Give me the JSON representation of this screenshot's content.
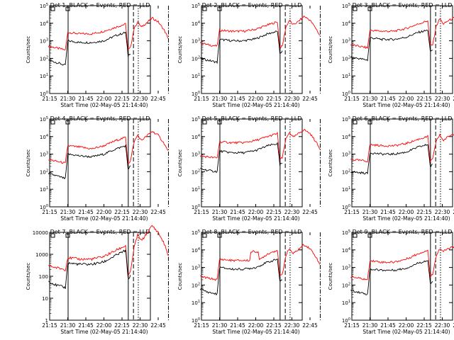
{
  "chart_data": [
    {
      "type": "line",
      "title": "Det 1, BLACK = Events, RED = LLD",
      "xlabel": "Start Time (02-May-05 21:14:40)",
      "ylabel": "Counts/sec",
      "y_scale": "log",
      "ylim": [
        1,
        100000
      ],
      "x_ticks": [
        "21:15",
        "21:30",
        "21:45",
        "22:00",
        "22:15",
        "22:30",
        "22:45"
      ],
      "y_ticks": [
        "10^0",
        "10^1",
        "10^2",
        "10^3",
        "10^4",
        "10^5"
      ],
      "series": [
        {
          "color": "#ff0000",
          "x": [
            "21:14",
            "21:20",
            "21:28",
            "21:30",
            "21:40",
            "21:50",
            "22:00",
            "22:10",
            "22:18",
            "22:20",
            "22:22",
            "22:25",
            "22:28",
            "22:31",
            "22:35",
            "22:40",
            "22:45",
            "22:50",
            "22:53"
          ],
          "values": [
            500,
            400,
            300,
            3000,
            2500,
            2500,
            3500,
            6000,
            9000,
            300,
            400,
            5000,
            12000,
            6000,
            10000,
            20000,
            12000,
            4000,
            1500
          ]
        },
        {
          "color": "#000000",
          "x": [
            "21:14",
            "21:20",
            "21:28",
            "21:30",
            "21:40",
            "21:50",
            "22:00",
            "22:10",
            "22:18",
            "22:20",
            "22:22"
          ],
          "values": [
            80,
            60,
            40,
            1000,
            800,
            800,
            1000,
            2000,
            3000,
            150,
            200
          ]
        }
      ]
    },
    {
      "type": "line",
      "title": "Det 2, BLACK = Events, RED = LLD",
      "xlabel": "Start Time (02-May-05 21:14:40)",
      "ylabel": "Counts/sec",
      "y_scale": "log",
      "ylim": [
        1,
        100000
      ],
      "x_ticks": [
        "21:15",
        "21:30",
        "21:45",
        "22:00",
        "22:15",
        "22:30",
        "22:45"
      ],
      "y_ticks": [
        "10^0",
        "10^1",
        "10^2",
        "10^3",
        "10^4",
        "10^5"
      ],
      "series": [
        {
          "color": "#ff0000",
          "x": [
            "21:14",
            "21:20",
            "21:28",
            "21:30",
            "21:40",
            "21:50",
            "22:00",
            "22:10",
            "22:18",
            "22:20",
            "22:22",
            "22:25",
            "22:28",
            "22:31",
            "22:35",
            "22:40",
            "22:45",
            "22:50",
            "22:53"
          ],
          "values": [
            800,
            600,
            500,
            4000,
            3500,
            3500,
            4500,
            8000,
            12000,
            400,
            500,
            6000,
            15000,
            8000,
            12000,
            25000,
            15000,
            5000,
            2000
          ]
        },
        {
          "color": "#000000",
          "x": [
            "21:14",
            "21:20",
            "21:28",
            "21:30",
            "21:40",
            "21:50",
            "22:00",
            "22:10",
            "22:18",
            "22:20",
            "22:22"
          ],
          "values": [
            100,
            80,
            60,
            1200,
            1000,
            1000,
            1300,
            2500,
            3500,
            200,
            250
          ]
        }
      ]
    },
    {
      "type": "line",
      "title": "Det 3, BLACK = Events, RED = LLD",
      "xlabel": "Start Time (02-May-05 21:14:40)",
      "ylabel": "Counts/sec",
      "y_scale": "log",
      "ylim": [
        1,
        100000
      ],
      "x_ticks": [
        "21:15",
        "21:30",
        "21:45",
        "22:00",
        "22:15",
        "22:30",
        "22:45"
      ],
      "y_ticks": [
        "10^0",
        "10^1",
        "10^2",
        "10^3",
        "10^4",
        "10^5"
      ],
      "series": [
        {
          "color": "#ff0000",
          "x": [
            "21:14",
            "21:20",
            "21:28",
            "21:30",
            "21:40",
            "21:50",
            "22:00",
            "22:10",
            "22:18",
            "22:20",
            "22:22",
            "22:25",
            "22:28",
            "22:31",
            "22:35",
            "22:40",
            "22:45",
            "22:50",
            "22:53"
          ],
          "values": [
            600,
            500,
            400,
            4000,
            3500,
            3500,
            5000,
            9000,
            14000,
            500,
            600,
            7000,
            18000,
            9000,
            14000,
            20000,
            12000,
            5000,
            2000
          ]
        },
        {
          "color": "#000000",
          "x": [
            "21:14",
            "21:20",
            "21:28",
            "21:30",
            "21:40",
            "21:50",
            "22:00",
            "22:10",
            "22:18",
            "22:20",
            "22:22"
          ],
          "values": [
            120,
            100,
            80,
            1500,
            1200,
            1200,
            1600,
            3000,
            4000,
            250,
            300
          ]
        }
      ]
    },
    {
      "type": "line",
      "title": "Det 4, BLACK = Events, RED = LLD",
      "xlabel": "Start Time (02-May-05 21:14:40)",
      "ylabel": "Counts/sec",
      "y_scale": "log",
      "ylim": [
        1,
        100000
      ],
      "x_ticks": [
        "21:15",
        "21:30",
        "21:45",
        "22:00",
        "22:15",
        "22:30",
        "22:45"
      ],
      "y_ticks": [
        "10^0",
        "10^1",
        "10^2",
        "10^3",
        "10^4",
        "10^5"
      ],
      "series": [
        {
          "color": "#ff0000",
          "x": [
            "21:14",
            "21:20",
            "21:28",
            "21:30",
            "21:40",
            "21:50",
            "22:00",
            "22:10",
            "22:18",
            "22:20",
            "22:22",
            "22:25",
            "22:28",
            "22:31",
            "22:35",
            "22:40",
            "22:45",
            "22:50",
            "22:53"
          ],
          "values": [
            500,
            400,
            300,
            3000,
            2500,
            2000,
            3000,
            6000,
            9000,
            300,
            400,
            5000,
            12000,
            6000,
            10000,
            20000,
            12000,
            4000,
            1500
          ]
        },
        {
          "color": "#000000",
          "x": [
            "21:14",
            "21:20",
            "21:28",
            "21:30",
            "21:40",
            "21:50",
            "22:00",
            "22:10",
            "22:18",
            "22:20",
            "22:22"
          ],
          "values": [
            80,
            60,
            40,
            1000,
            800,
            700,
            1000,
            2000,
            3000,
            150,
            200
          ]
        }
      ]
    },
    {
      "type": "line",
      "title": "Det 5, BLACK = Events, RED = LLD",
      "xlabel": "Start Time (02-May-05 21:14:40)",
      "ylabel": "Counts/sec",
      "y_scale": "log",
      "ylim": [
        1,
        100000
      ],
      "x_ticks": [
        "21:15",
        "21:30",
        "21:45",
        "22:00",
        "22:15",
        "22:30",
        "22:45"
      ],
      "y_ticks": [
        "10^0",
        "10^1",
        "10^2",
        "10^3",
        "10^4",
        "10^5"
      ],
      "series": [
        {
          "color": "#ff0000",
          "x": [
            "21:14",
            "21:20",
            "21:28",
            "21:30",
            "21:40",
            "21:50",
            "22:00",
            "22:10",
            "22:18",
            "22:20",
            "22:22",
            "22:25",
            "22:28",
            "22:31",
            "22:35",
            "22:40",
            "22:45",
            "22:50",
            "22:53"
          ],
          "values": [
            800,
            700,
            600,
            5000,
            4500,
            4500,
            6000,
            10000,
            15000,
            500,
            600,
            7000,
            18000,
            9000,
            14000,
            25000,
            15000,
            5000,
            2000
          ]
        },
        {
          "color": "#000000",
          "x": [
            "21:14",
            "21:20",
            "21:28",
            "21:30",
            "21:40",
            "21:50",
            "22:00",
            "22:10",
            "22:18",
            "22:20",
            "22:22"
          ],
          "values": [
            150,
            120,
            100,
            1500,
            1200,
            1200,
            1600,
            3000,
            4000,
            250,
            300
          ]
        }
      ]
    },
    {
      "type": "line",
      "title": "Det 6, BLACK = Events, RED = LLD",
      "xlabel": "Start Time (02-May-05 21:14:40)",
      "ylabel": "Counts/sec",
      "y_scale": "log",
      "ylim": [
        1,
        100000
      ],
      "x_ticks": [
        "21:15",
        "21:30",
        "21:45",
        "22:00",
        "22:15",
        "22:30",
        "22:45"
      ],
      "y_ticks": [
        "10^0",
        "10^1",
        "10^2",
        "10^3",
        "10^4",
        "10^5"
      ],
      "series": [
        {
          "color": "#ff0000",
          "x": [
            "21:14",
            "21:20",
            "21:28",
            "21:30",
            "21:40",
            "21:50",
            "22:00",
            "22:10",
            "22:18",
            "22:20",
            "22:22",
            "22:25",
            "22:28",
            "22:31",
            "22:35",
            "22:40",
            "22:45",
            "22:50",
            "22:53"
          ],
          "values": [
            500,
            450,
            400,
            3500,
            3000,
            3000,
            4000,
            7000,
            10000,
            400,
            500,
            6000,
            12000,
            6000,
            10000,
            15000,
            10000,
            4000,
            1500
          ]
        },
        {
          "color": "#000000",
          "x": [
            "21:14",
            "21:20",
            "21:28",
            "21:30",
            "21:40",
            "21:50",
            "22:00",
            "22:10",
            "22:18",
            "22:20",
            "22:22"
          ],
          "values": [
            100,
            90,
            80,
            1200,
            1000,
            1000,
            1300,
            2500,
            3500,
            200,
            250
          ]
        }
      ]
    },
    {
      "type": "line",
      "title": "Det 7, BLACK = Events, RED = LLD",
      "xlabel": "Start Time (02-May-05 21:14:40)",
      "ylabel": "Counts/sec",
      "y_scale": "log",
      "ylim": [
        1,
        10000
      ],
      "x_ticks": [
        "21:15",
        "21:30",
        "21:45",
        "22:00",
        "22:15",
        "22:30",
        "22:45"
      ],
      "y_ticks": [
        "1",
        "10",
        "100",
        "1000",
        "10000"
      ],
      "series": [
        {
          "color": "#ff0000",
          "x": [
            "21:14",
            "21:20",
            "21:28",
            "21:30",
            "21:40",
            "21:50",
            "22:00",
            "22:10",
            "22:18",
            "22:20",
            "22:22",
            "22:25",
            "22:28",
            "22:31",
            "22:35",
            "22:40",
            "22:45",
            "22:50",
            "22:53"
          ],
          "values": [
            300,
            250,
            200,
            700,
            600,
            600,
            800,
            1500,
            2500,
            100,
            150,
            2000,
            8000,
            4000,
            8000,
            20000,
            10000,
            3000,
            1000
          ]
        },
        {
          "color": "#000000",
          "x": [
            "21:14",
            "21:20",
            "21:28",
            "21:30",
            "21:40",
            "21:50",
            "22:00",
            "22:10",
            "22:18",
            "22:20",
            "22:22"
          ],
          "values": [
            60,
            40,
            30,
            400,
            350,
            350,
            450,
            900,
            1500,
            80,
            100
          ]
        }
      ]
    },
    {
      "type": "line",
      "title": "Det 8, BLACK = Events, RED = LLD",
      "xlabel": "Start Time (02-May-05 21:14:40)",
      "ylabel": "Counts/sec",
      "y_scale": "log",
      "ylim": [
        1,
        100000
      ],
      "x_ticks": [
        "21:15",
        "21:30",
        "21:45",
        "22:00",
        "22:15",
        "22:30",
        "22:45"
      ],
      "y_ticks": [
        "10^0",
        "10^1",
        "10^2",
        "10^3",
        "10^4",
        "10^5"
      ],
      "series": [
        {
          "color": "#ff0000",
          "x": [
            "21:14",
            "21:20",
            "21:28",
            "21:30",
            "21:40",
            "21:50",
            "21:55",
            "21:56",
            "22:02",
            "22:03",
            "22:05",
            "22:10",
            "22:18",
            "22:20",
            "22:22",
            "22:25",
            "22:28",
            "22:31",
            "22:35",
            "22:40",
            "22:45",
            "22:50",
            "22:53"
          ],
          "values": [
            300,
            250,
            200,
            3000,
            2500,
            2500,
            2500,
            8000,
            8000,
            2500,
            3500,
            6000,
            10000,
            300,
            400,
            5000,
            12000,
            6000,
            10000,
            20000,
            12000,
            4000,
            1500
          ]
        },
        {
          "color": "#000000",
          "x": [
            "21:14",
            "21:20",
            "21:28",
            "21:30",
            "21:40",
            "21:50",
            "22:00",
            "22:10",
            "22:18",
            "22:20",
            "22:22"
          ],
          "values": [
            60,
            40,
            30,
            1000,
            800,
            800,
            1000,
            2000,
            3000,
            150,
            200
          ]
        }
      ]
    },
    {
      "type": "line",
      "title": "Det 9, BLACK = Events, RED = LLD",
      "xlabel": "Start Time (02-May-05 21:14:40)",
      "ylabel": "Counts/sec",
      "y_scale": "log",
      "ylim": [
        1,
        100000
      ],
      "x_ticks": [
        "21:15",
        "21:30",
        "21:45",
        "22:00",
        "22:15",
        "22:30",
        "22:45"
      ],
      "y_ticks": [
        "10^0",
        "10^1",
        "10^2",
        "10^3",
        "10^4",
        "10^5"
      ],
      "series": [
        {
          "color": "#ff0000",
          "x": [
            "21:14",
            "21:20",
            "21:28",
            "21:30",
            "21:40",
            "21:50",
            "22:00",
            "22:10",
            "22:18",
            "22:20",
            "22:22",
            "22:25",
            "22:28",
            "22:31",
            "22:35",
            "22:40",
            "22:45",
            "22:50",
            "22:53"
          ],
          "values": [
            300,
            250,
            200,
            2500,
            2000,
            2000,
            3000,
            6000,
            10000,
            300,
            400,
            5000,
            12000,
            8000,
            12000,
            15000,
            10000,
            4000,
            1500
          ]
        },
        {
          "color": "#000000",
          "x": [
            "21:14",
            "21:20",
            "21:28",
            "21:30",
            "21:40",
            "21:50",
            "22:00",
            "22:10",
            "22:18",
            "22:20",
            "22:22"
          ],
          "values": [
            50,
            40,
            30,
            800,
            700,
            700,
            900,
            1800,
            2500,
            120,
            150
          ]
        }
      ]
    }
  ]
}
